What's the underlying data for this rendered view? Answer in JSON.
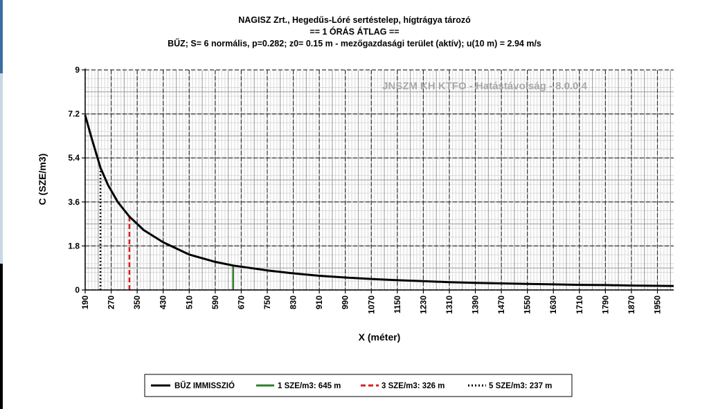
{
  "chart_data": {
    "type": "line",
    "title": "NAGISZ Zrt., Hegedűs-Lóré sertéstelep, hígtrágya tározó",
    "subtitle1": "== 1 ÓRÁS ÁTLAG ==",
    "subtitle2": "BŰZ; S= 6 normális, p=0.282; z0= 0.15 m - mezőgazdasági terület (aktív); u(10 m) = 2.94 m/s",
    "watermark": "JNSZM KH KTFO - Hatástávolság  - 8.0.0.4",
    "xlabel": "X (méter)",
    "ylabel": "C (SZE/m3)",
    "xlim": [
      190,
      2000
    ],
    "ylim": [
      0,
      9
    ],
    "x_ticks": [
      "190",
      "270",
      "350",
      "430",
      "510",
      "590",
      "670",
      "750",
      "830",
      "910",
      "990",
      "1070",
      "1150",
      "1230",
      "1310",
      "1390",
      "1470",
      "1550",
      "1630",
      "1710",
      "1790",
      "1870",
      "1950"
    ],
    "y_ticks": [
      "0",
      "1.8",
      "3.6",
      "5.4",
      "7.2",
      "9"
    ],
    "grid": true,
    "series": [
      {
        "name": "BŰZ IMMISSZIÓ",
        "color": "#000000",
        "x": [
          190,
          210,
          237,
          260,
          290,
          326,
          370,
          430,
          510,
          590,
          645,
          750,
          830,
          910,
          990,
          1070,
          1150,
          1230,
          1310,
          1390,
          1470,
          1550,
          1630,
          1710,
          1790,
          1870,
          1950,
          2000
        ],
        "y": [
          7.15,
          6.2,
          5.0,
          4.3,
          3.6,
          3.0,
          2.45,
          1.95,
          1.45,
          1.15,
          1.0,
          0.8,
          0.68,
          0.58,
          0.51,
          0.45,
          0.4,
          0.36,
          0.32,
          0.29,
          0.27,
          0.25,
          0.23,
          0.21,
          0.2,
          0.18,
          0.17,
          0.16
        ]
      }
    ],
    "markers": [
      {
        "label": "1 SZE/m3: 645 m",
        "x": 645,
        "y": 1,
        "color": "#2e7d2e",
        "style": "solid"
      },
      {
        "label": "3 SZE/m3: 326 m",
        "x": 326,
        "y": 3,
        "color": "#d62020",
        "style": "dashed"
      },
      {
        "label": "5 SZE/m3: 237 m",
        "x": 237,
        "y": 5,
        "color": "#000000",
        "style": "dotted"
      }
    ],
    "legend_placement": "bottom"
  }
}
